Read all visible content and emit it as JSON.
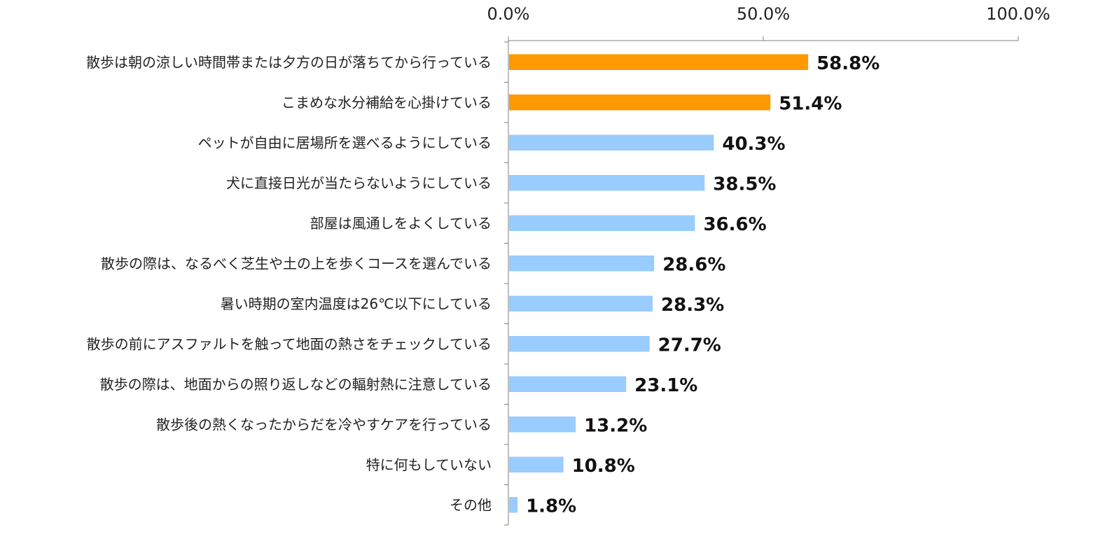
{
  "chart_data": {
    "type": "bar",
    "orientation": "horizontal",
    "title": "",
    "xlabel": "",
    "ylabel": "",
    "xlim": [
      0,
      100
    ],
    "x_ticks": [
      "0.0%",
      "50.0%",
      "100.0%"
    ],
    "x_axis_position": "top",
    "grid": false,
    "categories": [
      "散歩は朝の涼しい時間帯または夕方の日が落ちてから行っている",
      "こまめな水分補給を心掛けている",
      "ペットが自由に居場所を選べるようにしている",
      "犬に直接日光が当たらないようにしている",
      "部屋は風通しをよくしている",
      "散歩の際は、なるべく芝生や土の上を歩くコースを選んでいる",
      "暑い時期の室内温度は26℃以下にしている",
      "散歩の前にアスファルトを触って地面の熱さをチェックしている",
      "散歩の際は、地面からの照り返しなどの輻射熱に注意している",
      "散歩後の熱くなったからだを冷やすケアを行っている",
      "特に何もしていない",
      "その他"
    ],
    "values": [
      58.8,
      51.4,
      40.3,
      38.5,
      36.6,
      28.6,
      28.3,
      27.7,
      23.1,
      13.2,
      10.8,
      1.8
    ],
    "value_labels": [
      "58.8%",
      "51.4%",
      "40.3%",
      "38.5%",
      "36.6%",
      "28.6%",
      "28.3%",
      "27.7%",
      "23.1%",
      "13.2%",
      "10.8%",
      "1.8%"
    ],
    "highlight_count": 2,
    "colors": {
      "highlight": "#FF9900",
      "default": "#99CCFF",
      "axis": "#808080",
      "text": "#222222"
    }
  }
}
